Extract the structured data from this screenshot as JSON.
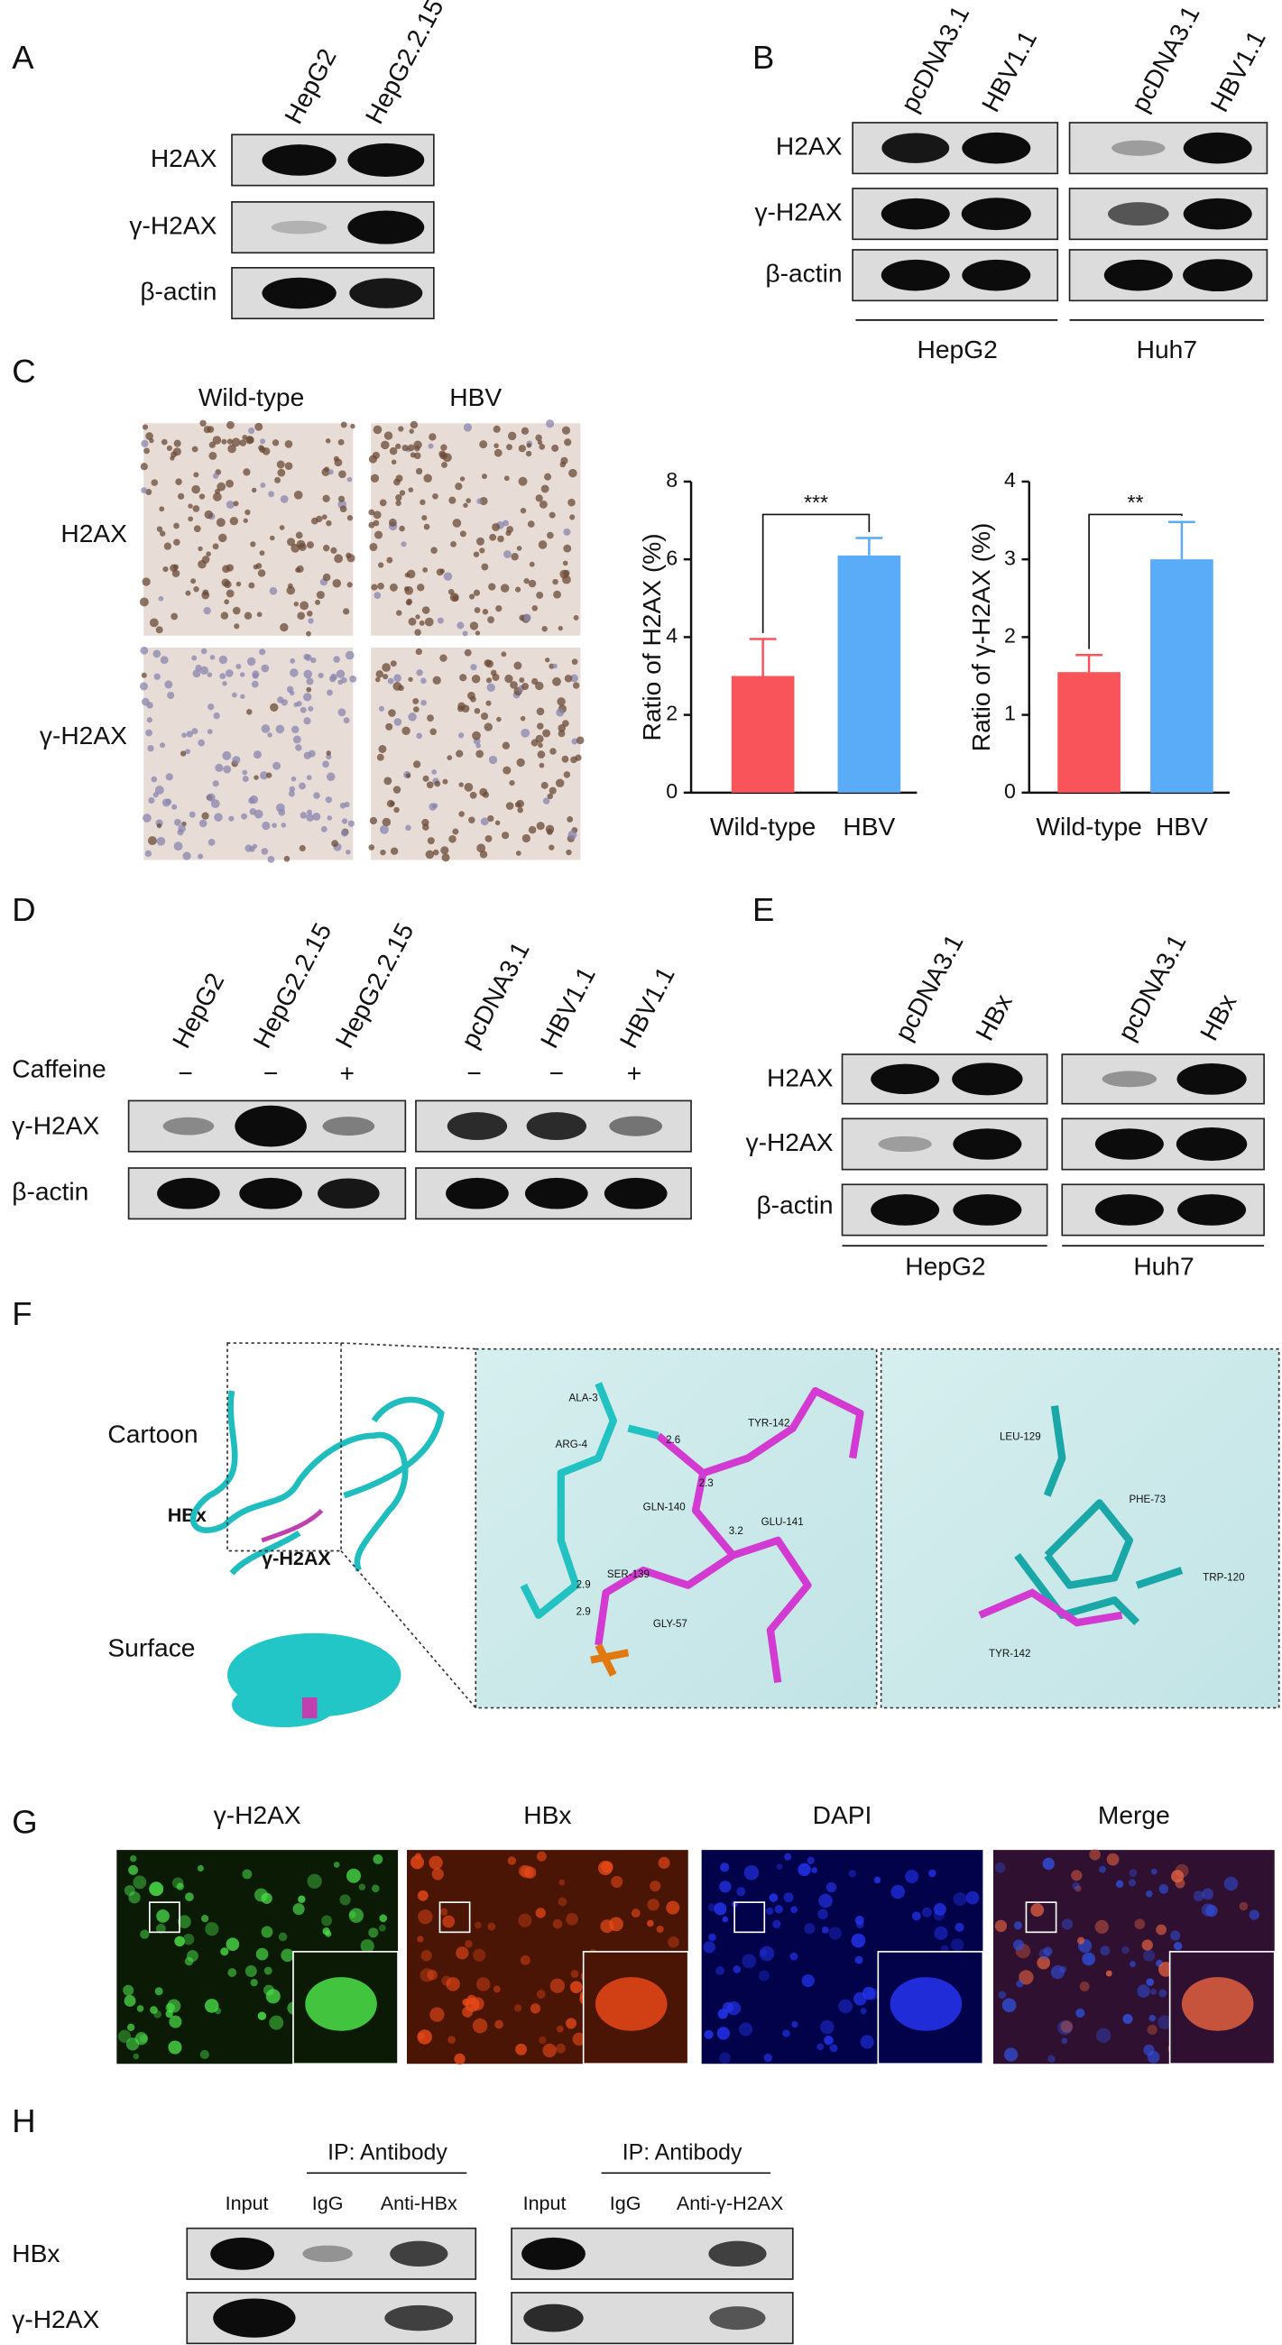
{
  "panel_a": {
    "label": "A",
    "lanes": [
      "HepG2",
      "HepG2.2.15"
    ],
    "rows": [
      "H2AX",
      "γ-H2AX",
      "β-actin"
    ]
  },
  "panel_b": {
    "label": "B",
    "lanes": [
      "pcDNA3.1",
      "HBV1.1",
      "pcDNA3.1",
      "HBV1.1"
    ],
    "rows": [
      "H2AX",
      "γ-H2AX",
      "β-actin"
    ],
    "groups": [
      "HepG2",
      "Huh7"
    ]
  },
  "panel_c": {
    "label": "C",
    "columns": [
      "Wild-type",
      "HBV"
    ],
    "rows": [
      "H2AX",
      "γ-H2AX"
    ]
  },
  "chart_data": [
    {
      "type": "bar",
      "y_label": "Ratio of H2AX (%)",
      "categories": [
        "Wild-type",
        "HBV"
      ],
      "values": [
        3.0,
        6.1
      ],
      "errors": [
        0.95,
        0.45
      ],
      "colors": [
        "#f8545a",
        "#5aabf8"
      ],
      "ylim": [
        0,
        8
      ],
      "yticks": [
        0,
        2,
        4,
        6,
        8
      ],
      "significance": "***"
    },
    {
      "type": "bar",
      "y_label": "Ratio of γ-H2AX (%)",
      "categories": [
        "Wild-type",
        "HBV"
      ],
      "values": [
        1.55,
        3.0
      ],
      "errors": [
        0.22,
        0.48
      ],
      "colors": [
        "#f8545a",
        "#5aabf8"
      ],
      "ylim": [
        0,
        4
      ],
      "yticks": [
        0,
        1,
        2,
        3,
        4
      ],
      "significance": "**"
    }
  ],
  "panel_d": {
    "label": "D",
    "lanes": [
      "HepG2",
      "HepG2.2.15",
      "HepG2.2.15",
      "pcDNA3.1",
      "HBV1.1",
      "HBV1.1"
    ],
    "treatment_label": "Caffeine",
    "treatment": [
      "−",
      "−",
      "+",
      "−",
      "−",
      "+"
    ],
    "rows": [
      "γ-H2AX",
      "β-actin"
    ]
  },
  "panel_e": {
    "label": "E",
    "lanes": [
      "pcDNA3.1",
      "HBx",
      "pcDNA3.1",
      "HBx"
    ],
    "rows": [
      "H2AX",
      "γ-H2AX",
      "β-actin"
    ],
    "groups": [
      "HepG2",
      "Huh7"
    ]
  },
  "panel_f": {
    "label": "F",
    "views": [
      "Cartoon",
      "Surface"
    ],
    "chains": [
      "HBx",
      "γ-H2AX"
    ],
    "residues_left": [
      "ALA-3",
      "ARG-4",
      "GLN-140",
      "SER-139",
      "GLY-57",
      "TYR-142",
      "GLU-141"
    ],
    "distances": [
      "2.6",
      "2.3",
      "3.2",
      "2.9",
      "2.9"
    ],
    "residues_right": [
      "LEU-129",
      "PHE-73",
      "TRP-120",
      "TYR-142"
    ]
  },
  "panel_g": {
    "label": "G",
    "channels": [
      "γ-H2AX",
      "HBx",
      "DAPI",
      "Merge"
    ]
  },
  "panel_h": {
    "label": "H",
    "group_label": "IP: Antibody",
    "lanes_left": [
      "Input",
      "IgG",
      "Anti-HBx"
    ],
    "lanes_right": [
      "Input",
      "IgG",
      "Anti-γ-H2AX"
    ],
    "rows": [
      "HBx",
      "γ-H2AX"
    ]
  }
}
